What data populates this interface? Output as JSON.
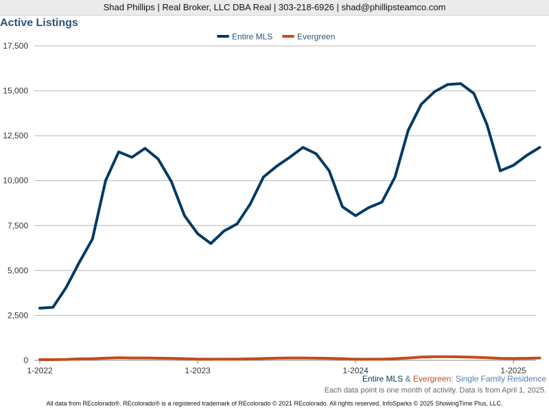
{
  "header": {
    "text": "Shad Phillips | Real Broker, LLC DBA Real | 303-218-6926 | shad@phillipsteamco.com"
  },
  "chart_title": "Active Listings",
  "caption": {
    "series_a": "Entire MLS",
    "amp": " & ",
    "series_b": "Evergreen",
    "rest": ": Single Family Residence",
    "note": "Each data point is one month of activity. Data is from April 1, 2025."
  },
  "footer": "All data from REcolorado®. REcolorado® is a registered trademark of REcolorado © 2021 REcolorado. All rights reserved. InfoSparks © 2025 ShowingTime Plus, LLC.",
  "colors": {
    "entire_mls": "#003a63",
    "evergreen": "#c44a1c",
    "grid": "#b4b4b4",
    "title": "#2a5379"
  },
  "chart_data": {
    "type": "line",
    "title": "Active Listings",
    "legend_position": "top-center",
    "grid": true,
    "x_unit": "month",
    "x": [
      "2022-01",
      "2022-02",
      "2022-03",
      "2022-04",
      "2022-05",
      "2022-06",
      "2022-07",
      "2022-08",
      "2022-09",
      "2022-10",
      "2022-11",
      "2022-12",
      "2023-01",
      "2023-02",
      "2023-03",
      "2023-04",
      "2023-05",
      "2023-06",
      "2023-07",
      "2023-08",
      "2023-09",
      "2023-10",
      "2023-11",
      "2023-12",
      "2024-01",
      "2024-02",
      "2024-03",
      "2024-04",
      "2024-05",
      "2024-06",
      "2024-07",
      "2024-08",
      "2024-09",
      "2024-10",
      "2024-11",
      "2024-12",
      "2025-01",
      "2025-02",
      "2025-03"
    ],
    "x_ticks": [
      "1-2022",
      "1-2023",
      "1-2024",
      "1-2025"
    ],
    "x_tick_positions": [
      "2022-01",
      "2023-01",
      "2024-01",
      "2025-01"
    ],
    "y_ticks": [
      "0",
      "2,500",
      "5,000",
      "7,500",
      "10,000",
      "12,500",
      "15,000",
      "17,500"
    ],
    "ylim": [
      0,
      17500
    ],
    "series": [
      {
        "name": "Entire MLS",
        "color": "#003a63",
        "values": [
          2900,
          2950,
          4050,
          5450,
          6750,
          10000,
          11600,
          11300,
          11800,
          11200,
          9950,
          8050,
          7050,
          6500,
          7200,
          7600,
          8700,
          10200,
          10800,
          11300,
          11850,
          11500,
          10550,
          8550,
          8050,
          8500,
          8800,
          10200,
          12800,
          14250,
          14950,
          15350,
          15400,
          14850,
          13100,
          10550,
          10850,
          11400,
          11850
        ]
      },
      {
        "name": "Evergreen",
        "color": "#c44a1c",
        "values": [
          40,
          40,
          50,
          80,
          90,
          120,
          140,
          130,
          130,
          120,
          110,
          90,
          70,
          60,
          70,
          70,
          80,
          100,
          120,
          130,
          130,
          120,
          110,
          90,
          60,
          60,
          70,
          90,
          130,
          180,
          200,
          200,
          190,
          170,
          140,
          110,
          100,
          110,
          130
        ]
      }
    ]
  }
}
